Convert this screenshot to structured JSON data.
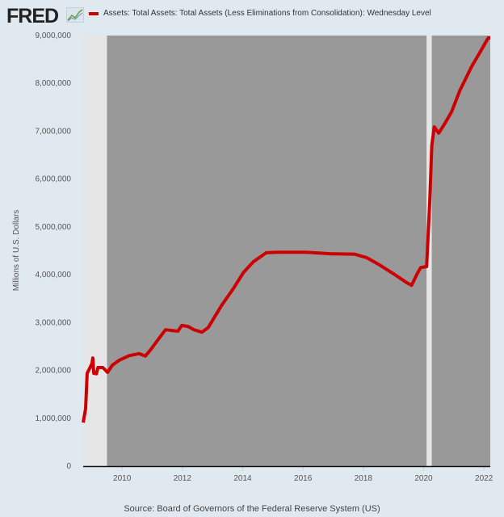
{
  "header": {
    "logo_text": "FRED",
    "logo_icon": "chart-line-icon"
  },
  "legend": {
    "label": "Assets: Total Assets: Total Assets (Less Eliminations from Consolidation): Wednesday Level",
    "color": "#cc0000"
  },
  "source": "Source: Board of Governors of the Federal Reserve System (US)",
  "chart_data": {
    "type": "line",
    "title": "Assets: Total Assets: Total Assets (Less Eliminations from Consolidation): Wednesday Level",
    "xlabel": "",
    "ylabel": "Millions of U.S. Dollars",
    "xlim": [
      2008.71,
      2022.21
    ],
    "ylim": [
      0,
      9000000
    ],
    "xticks": [
      2010,
      2012,
      2014,
      2016,
      2018,
      2020,
      2022
    ],
    "xtick_labels": [
      "2010",
      "2012",
      "2014",
      "2016",
      "2018",
      "2020",
      "2022"
    ],
    "yticks": [
      0,
      1000000,
      2000000,
      3000000,
      4000000,
      5000000,
      6000000,
      7000000,
      8000000,
      9000000
    ],
    "ytick_labels": [
      "0",
      "1,000,000",
      "2,000,000",
      "3,000,000",
      "4,000,000",
      "5,000,000",
      "6,000,000",
      "7,000,000",
      "8,000,000",
      "9,000,000"
    ],
    "shaded_periods": [
      {
        "start": 2008.71,
        "end": 2009.5,
        "color": "#e6e6e6"
      },
      {
        "start": 2009.5,
        "end": 2020.1,
        "color": "#999999"
      },
      {
        "start": 2020.1,
        "end": 2020.27,
        "color": "#e6e6e6"
      },
      {
        "start": 2020.27,
        "end": 2022.21,
        "color": "#999999"
      }
    ],
    "grid": false,
    "legend_position": "top",
    "series": [
      {
        "name": "Assets: Total Assets: Total Assets (Less Eliminations from Consolidation): Wednesday Level",
        "color": "#cc0000",
        "x": [
          2008.71,
          2008.79,
          2008.84,
          2009.0,
          2009.03,
          2009.06,
          2009.15,
          2009.2,
          2009.36,
          2009.52,
          2009.68,
          2009.9,
          2010.24,
          2010.56,
          2010.77,
          2010.93,
          2011.2,
          2011.44,
          2011.85,
          2011.98,
          2012.19,
          2012.38,
          2012.65,
          2012.86,
          2013.07,
          2013.3,
          2013.71,
          2014.03,
          2014.35,
          2014.78,
          2015.18,
          2016.1,
          2016.9,
          2017.7,
          2018.1,
          2018.5,
          2019.05,
          2019.45,
          2019.6,
          2019.77,
          2019.9,
          2020.1,
          2020.2,
          2020.27,
          2020.35,
          2020.5,
          2020.72,
          2020.93,
          2021.2,
          2021.6,
          2021.87,
          2022.14,
          2022.21
        ],
        "values": [
          910000,
          1200000,
          1940000,
          2140000,
          2260000,
          1940000,
          1930000,
          2060000,
          2060000,
          1960000,
          2110000,
          2210000,
          2310000,
          2350000,
          2300000,
          2420000,
          2650000,
          2850000,
          2820000,
          2940000,
          2920000,
          2850000,
          2800000,
          2900000,
          3120000,
          3360000,
          3730000,
          4050000,
          4270000,
          4460000,
          4470000,
          4470000,
          4440000,
          4430000,
          4360000,
          4220000,
          4000000,
          3830000,
          3780000,
          4000000,
          4150000,
          4170000,
          5500000,
          6700000,
          7090000,
          6960000,
          7180000,
          7410000,
          7850000,
          8360000,
          8650000,
          8950000,
          8950000
        ]
      }
    ]
  }
}
